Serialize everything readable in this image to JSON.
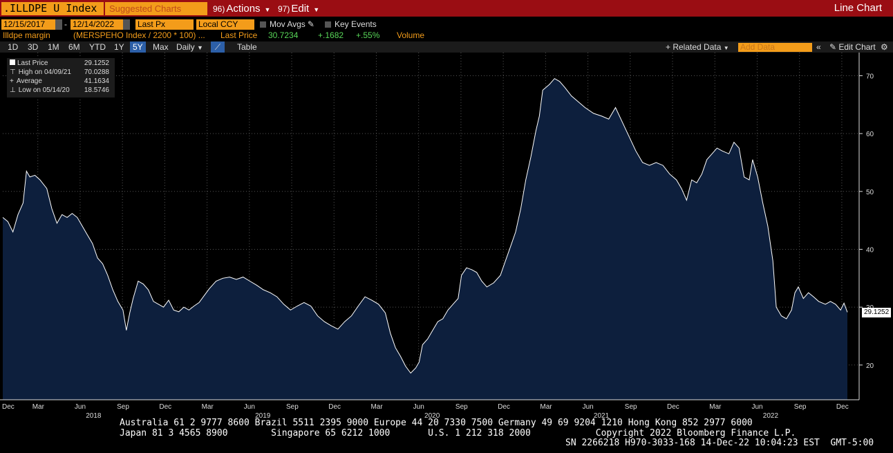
{
  "header": {
    "ticker": ".ILLDPE U Index",
    "suggested_charts": "Suggested Charts",
    "actions_num": "96)",
    "actions_label": "Actions",
    "edit_num": "97)",
    "edit_label": "Edit",
    "view_title": "Line Chart"
  },
  "controls": {
    "start_date": "12/15/2017",
    "end_date": "12/14/2022",
    "field": "Last Px",
    "currency": "Local CCY",
    "mov_avgs": "Mov Avgs",
    "key_events": "Key Events"
  },
  "info": {
    "name": "Illdpe margin",
    "formula": "(MERSPEHO Index / 2200 * 100) ...",
    "last_price_label": "Last Price",
    "last_price": "30.7234",
    "change": "+.1682",
    "change_pct": "+.55%",
    "volume_label": "Volume"
  },
  "toolbar": {
    "periods": [
      "1D",
      "3D",
      "1M",
      "6M",
      "YTD",
      "1Y",
      "5Y",
      "Max"
    ],
    "selected_period": "5Y",
    "frequency": "Daily",
    "table_label": "Table",
    "related_data": "+ Related Data",
    "add_data": "Add Data",
    "edit_chart": "Edit Chart"
  },
  "legend": {
    "rows": [
      {
        "label": "Last Price",
        "value": "29.1252"
      },
      {
        "label": "High on 04/09/21",
        "value": "70.0288"
      },
      {
        "label": "Average",
        "value": "41.1634"
      },
      {
        "label": "Low on 05/14/20",
        "value": "18.5746"
      }
    ]
  },
  "last_value_tag": "29.1252",
  "colors": {
    "header_red": "#9a0d13",
    "field_orange": "#f39c1a",
    "area_fill": "#0d1f3d",
    "line": "#ffffff",
    "background": "#000000",
    "up_green": "#58d658"
  },
  "footer": {
    "line1": "Australia 61 2 9777 8600 Brazil 5511 2395 9000 Europe 44 20 7330 7500 Germany 49 69 9204 1210 Hong Kong 852 2977 6000",
    "line2": "Japan 81 3 4565 8900        Singapore 65 6212 1000       U.S. 1 212 318 2000            Copyright 2022 Bloomberg Finance L.P.",
    "line3": "SN 2266218 H970-3033-168 14-Dec-22 10:04:23 EST  GMT-5:00"
  },
  "chart_data": {
    "type": "area",
    "ylim": [
      14,
      74
    ],
    "yticks": [
      20,
      30,
      40,
      50,
      60,
      70
    ],
    "x_start": 2017.96,
    "x_end": 2022.95,
    "month_ticks": [
      {
        "label": "Dec",
        "x": 2017.917
      },
      {
        "label": "Mar",
        "x": 2018.167
      },
      {
        "label": "Jun",
        "x": 2018.417
      },
      {
        "label": "Sep",
        "x": 2018.667
      },
      {
        "label": "Dec",
        "x": 2018.917
      },
      {
        "label": "Mar",
        "x": 2019.167
      },
      {
        "label": "Jun",
        "x": 2019.417
      },
      {
        "label": "Sep",
        "x": 2019.667
      },
      {
        "label": "Dec",
        "x": 2019.917
      },
      {
        "label": "Mar",
        "x": 2020.167
      },
      {
        "label": "Jun",
        "x": 2020.417
      },
      {
        "label": "Sep",
        "x": 2020.667
      },
      {
        "label": "Dec",
        "x": 2020.917
      },
      {
        "label": "Mar",
        "x": 2021.167
      },
      {
        "label": "Jun",
        "x": 2021.417
      },
      {
        "label": "Sep",
        "x": 2021.667
      },
      {
        "label": "Dec",
        "x": 2021.917
      },
      {
        "label": "Mar",
        "x": 2022.167
      },
      {
        "label": "Jun",
        "x": 2022.417
      },
      {
        "label": "Sep",
        "x": 2022.667
      },
      {
        "label": "Dec",
        "x": 2022.917
      }
    ],
    "year_labels": [
      {
        "label": "2018",
        "x": 2018.5
      },
      {
        "label": "2019",
        "x": 2019.5
      },
      {
        "label": "2020",
        "x": 2020.5
      },
      {
        "label": "2021",
        "x": 2021.5
      },
      {
        "label": "2022",
        "x": 2022.5
      }
    ],
    "series": [
      {
        "name": "Last Price",
        "points": [
          [
            2017.96,
            45.5
          ],
          [
            2017.99,
            44.8
          ],
          [
            2018.02,
            43.0
          ],
          [
            2018.05,
            46.0
          ],
          [
            2018.08,
            48.0
          ],
          [
            2018.1,
            53.5
          ],
          [
            2018.12,
            52.5
          ],
          [
            2018.15,
            52.8
          ],
          [
            2018.18,
            52.0
          ],
          [
            2018.22,
            50.5
          ],
          [
            2018.25,
            47.0
          ],
          [
            2018.28,
            44.5
          ],
          [
            2018.31,
            46.0
          ],
          [
            2018.34,
            45.5
          ],
          [
            2018.37,
            46.2
          ],
          [
            2018.4,
            45.5
          ],
          [
            2018.43,
            44.0
          ],
          [
            2018.46,
            42.5
          ],
          [
            2018.49,
            41.0
          ],
          [
            2018.52,
            38.5
          ],
          [
            2018.55,
            37.5
          ],
          [
            2018.58,
            35.5
          ],
          [
            2018.61,
            33.0
          ],
          [
            2018.64,
            31.0
          ],
          [
            2018.67,
            29.5
          ],
          [
            2018.69,
            26.0
          ],
          [
            2018.71,
            29.0
          ],
          [
            2018.73,
            31.5
          ],
          [
            2018.76,
            34.5
          ],
          [
            2018.79,
            34.0
          ],
          [
            2018.82,
            33.0
          ],
          [
            2018.85,
            31.0
          ],
          [
            2018.88,
            30.5
          ],
          [
            2018.91,
            30.0
          ],
          [
            2018.94,
            31.2
          ],
          [
            2018.97,
            29.5
          ],
          [
            2019.0,
            29.2
          ],
          [
            2019.03,
            30.0
          ],
          [
            2019.06,
            29.5
          ],
          [
            2019.09,
            30.2
          ],
          [
            2019.12,
            30.8
          ],
          [
            2019.15,
            32.0
          ],
          [
            2019.18,
            33.2
          ],
          [
            2019.22,
            34.5
          ],
          [
            2019.26,
            35.0
          ],
          [
            2019.3,
            35.2
          ],
          [
            2019.34,
            34.8
          ],
          [
            2019.38,
            35.2
          ],
          [
            2019.42,
            34.5
          ],
          [
            2019.46,
            33.8
          ],
          [
            2019.5,
            33.0
          ],
          [
            2019.54,
            32.5
          ],
          [
            2019.58,
            31.8
          ],
          [
            2019.62,
            30.5
          ],
          [
            2019.66,
            29.5
          ],
          [
            2019.7,
            30.2
          ],
          [
            2019.74,
            30.8
          ],
          [
            2019.78,
            30.2
          ],
          [
            2019.82,
            28.5
          ],
          [
            2019.86,
            27.5
          ],
          [
            2019.9,
            26.8
          ],
          [
            2019.94,
            26.2
          ],
          [
            2019.98,
            27.5
          ],
          [
            2020.02,
            28.5
          ],
          [
            2020.06,
            30.2
          ],
          [
            2020.1,
            31.8
          ],
          [
            2020.14,
            31.2
          ],
          [
            2020.18,
            30.5
          ],
          [
            2020.22,
            29.0
          ],
          [
            2020.25,
            25.5
          ],
          [
            2020.28,
            23.0
          ],
          [
            2020.31,
            21.5
          ],
          [
            2020.34,
            19.8
          ],
          [
            2020.37,
            18.6
          ],
          [
            2020.4,
            19.5
          ],
          [
            2020.42,
            20.5
          ],
          [
            2020.44,
            23.5
          ],
          [
            2020.47,
            24.5
          ],
          [
            2020.5,
            26.0
          ],
          [
            2020.53,
            27.5
          ],
          [
            2020.56,
            28.0
          ],
          [
            2020.59,
            29.5
          ],
          [
            2020.62,
            30.5
          ],
          [
            2020.65,
            31.5
          ],
          [
            2020.67,
            35.5
          ],
          [
            2020.7,
            36.8
          ],
          [
            2020.73,
            36.5
          ],
          [
            2020.76,
            36.0
          ],
          [
            2020.79,
            34.5
          ],
          [
            2020.82,
            33.5
          ],
          [
            2020.86,
            34.2
          ],
          [
            2020.9,
            35.5
          ],
          [
            2020.93,
            38.0
          ],
          [
            2020.96,
            40.5
          ],
          [
            2020.99,
            43.0
          ],
          [
            2021.02,
            47.0
          ],
          [
            2021.05,
            52.0
          ],
          [
            2021.08,
            56.0
          ],
          [
            2021.11,
            60.5
          ],
          [
            2021.13,
            63.0
          ],
          [
            2021.15,
            67.5
          ],
          [
            2021.19,
            68.5
          ],
          [
            2021.22,
            69.5
          ],
          [
            2021.25,
            69.0
          ],
          [
            2021.28,
            68.0
          ],
          [
            2021.32,
            66.5
          ],
          [
            2021.36,
            65.5
          ],
          [
            2021.4,
            64.5
          ],
          [
            2021.45,
            63.5
          ],
          [
            2021.5,
            63.0
          ],
          [
            2021.54,
            62.5
          ],
          [
            2021.58,
            64.5
          ],
          [
            2021.62,
            62.0
          ],
          [
            2021.66,
            59.5
          ],
          [
            2021.7,
            57.0
          ],
          [
            2021.74,
            55.0
          ],
          [
            2021.78,
            54.5
          ],
          [
            2021.82,
            55.0
          ],
          [
            2021.86,
            54.5
          ],
          [
            2021.9,
            53.0
          ],
          [
            2021.94,
            52.0
          ],
          [
            2021.97,
            50.5
          ],
          [
            2022.0,
            48.5
          ],
          [
            2022.03,
            52.0
          ],
          [
            2022.06,
            51.5
          ],
          [
            2022.09,
            53.0
          ],
          [
            2022.12,
            55.5
          ],
          [
            2022.15,
            56.5
          ],
          [
            2022.18,
            57.5
          ],
          [
            2022.21,
            57.0
          ],
          [
            2022.25,
            56.5
          ],
          [
            2022.28,
            58.5
          ],
          [
            2022.31,
            57.5
          ],
          [
            2022.34,
            52.5
          ],
          [
            2022.37,
            52.0
          ],
          [
            2022.39,
            55.5
          ],
          [
            2022.42,
            52.5
          ],
          [
            2022.45,
            48.0
          ],
          [
            2022.48,
            44.0
          ],
          [
            2022.51,
            38.0
          ],
          [
            2022.53,
            30.0
          ],
          [
            2022.56,
            28.5
          ],
          [
            2022.59,
            28.0
          ],
          [
            2022.62,
            29.5
          ],
          [
            2022.64,
            32.5
          ],
          [
            2022.66,
            33.5
          ],
          [
            2022.69,
            31.5
          ],
          [
            2022.72,
            32.5
          ],
          [
            2022.75,
            31.8
          ],
          [
            2022.78,
            31.0
          ],
          [
            2022.82,
            30.5
          ],
          [
            2022.85,
            31.0
          ],
          [
            2022.88,
            30.5
          ],
          [
            2022.91,
            29.5
          ],
          [
            2022.93,
            30.7
          ],
          [
            2022.95,
            29.13
          ]
        ]
      }
    ]
  }
}
